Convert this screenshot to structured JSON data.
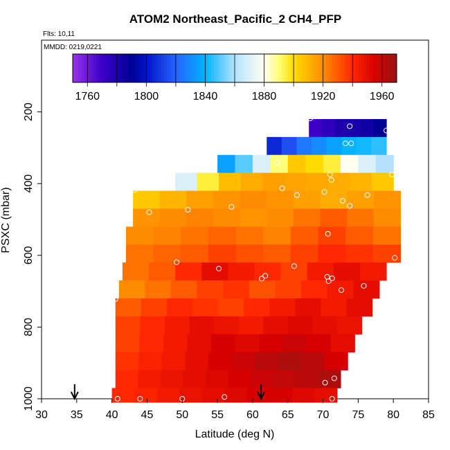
{
  "chart_data": {
    "type": "heatmap",
    "title": "ATOM2 Northeast_Pacific_2 CH4_PFP",
    "flights_note": "Flts: 10,11",
    "dates_note": "MMDD: 0219,0221",
    "xlabel": "Latitude (deg N)",
    "ylabel": "PSXC (mbar)",
    "xlim": [
      30,
      85
    ],
    "ylim": [
      1000,
      0
    ],
    "x_ticks": [
      "30",
      "35",
      "40",
      "45",
      "50",
      "55",
      "60",
      "65",
      "70",
      "75",
      "80",
      "85"
    ],
    "y_ticks": [
      "200",
      "400",
      "600",
      "800",
      "1000"
    ],
    "colorbar": {
      "ticks": [
        "1760",
        "1800",
        "1840",
        "1880",
        "1920",
        "1960"
      ],
      "range": [
        1750,
        1970
      ]
    },
    "pressure_bin_edges": [
      220,
      270,
      320,
      370,
      420,
      470,
      520,
      570,
      620,
      670,
      720,
      770,
      820,
      870,
      920,
      970,
      1010
    ],
    "rows": [
      {
        "p_top": 220,
        "p_bot": 270,
        "lat_min": 68,
        "lat_max": 79,
        "values": [
          1770,
          1775,
          1780,
          1782,
          1785,
          1790
        ]
      },
      {
        "p_top": 270,
        "p_bot": 320,
        "lat_min": 62,
        "lat_max": 79,
        "values": [
          1805,
          1815,
          1825,
          1830,
          1835,
          1840,
          1842,
          1845
        ]
      },
      {
        "p_top": 320,
        "p_bot": 370,
        "lat_min": 55,
        "lat_max": 80,
        "values": [
          1835,
          1850,
          1870,
          1890,
          1905,
          1900,
          1895,
          1880,
          1870,
          1860
        ]
      },
      {
        "p_top": 370,
        "p_bot": 420,
        "lat_min": 49,
        "lat_max": 80,
        "values": [
          1870,
          1895,
          1908,
          1912,
          1915,
          1914,
          1913,
          1912,
          1910,
          1905
        ]
      },
      {
        "p_top": 420,
        "p_bot": 470,
        "lat_min": 43,
        "lat_max": 81,
        "values": [
          1905,
          1910,
          1915,
          1918,
          1920,
          1918,
          1915,
          1912,
          1915,
          1918
        ]
      },
      {
        "p_top": 470,
        "p_bot": 520,
        "lat_min": 43,
        "lat_max": 81,
        "values": [
          1918,
          1920,
          1922,
          1920,
          1918,
          1920,
          1925,
          1930,
          1925,
          1920
        ]
      },
      {
        "p_top": 520,
        "p_bot": 570,
        "lat_min": 42,
        "lat_max": 81,
        "values": [
          1920,
          1922,
          1925,
          1928,
          1925,
          1922,
          1930,
          1935,
          1930,
          1925
        ]
      },
      {
        "p_top": 570,
        "p_bot": 620,
        "lat_min": 42,
        "lat_max": 81,
        "values": [
          1925,
          1928,
          1930,
          1935,
          1932,
          1930,
          1935,
          1940,
          1938,
          1935
        ]
      },
      {
        "p_top": 620,
        "p_bot": 670,
        "lat_min": 41.5,
        "lat_max": 79,
        "values": [
          1925,
          1930,
          1940,
          1950,
          1945,
          1940,
          1935,
          1945,
          1950,
          1945
        ]
      },
      {
        "p_top": 670,
        "p_bot": 720,
        "lat_min": 41,
        "lat_max": 78,
        "values": [
          1920,
          1925,
          1930,
          1935,
          1938,
          1932,
          1935,
          1940,
          1945,
          1950
        ]
      },
      {
        "p_top": 720,
        "p_bot": 770,
        "lat_min": 40.5,
        "lat_max": 77,
        "values": [
          1930,
          1935,
          1940,
          1938,
          1935,
          1940,
          1945,
          1950,
          1945,
          1950
        ]
      },
      {
        "p_top": 770,
        "p_bot": 820,
        "lat_min": 40.5,
        "lat_max": 75.5,
        "values": [
          1935,
          1940,
          1945,
          1950,
          1948,
          1945,
          1950,
          1952,
          1950,
          1948
        ]
      },
      {
        "p_top": 820,
        "p_bot": 870,
        "lat_min": 40.5,
        "lat_max": 74.5,
        "values": [
          1935,
          1940,
          1945,
          1950,
          1955,
          1952,
          1955,
          1958,
          1955,
          1950
        ]
      },
      {
        "p_top": 870,
        "p_bot": 920,
        "lat_min": 40.5,
        "lat_max": 73.5,
        "values": [
          1938,
          1942,
          1945,
          1950,
          1955,
          1958,
          1962,
          1965,
          1962,
          1955
        ]
      },
      {
        "p_top": 920,
        "p_bot": 970,
        "lat_min": 40.5,
        "lat_max": 72.5,
        "values": [
          1940,
          1945,
          1948,
          1950,
          1952,
          1955,
          1958,
          1960,
          1962,
          1965
        ]
      },
      {
        "p_top": 970,
        "p_bot": 1010,
        "lat_min": 40,
        "lat_max": 72,
        "values": [
          1940,
          1942,
          1945,
          1948,
          1950,
          1952,
          1955,
          1955,
          1952,
          1950
        ]
      }
    ],
    "samples": [
      {
        "lat": 68.2,
        "p": 218
      },
      {
        "lat": 73.8,
        "p": 240
      },
      {
        "lat": 79.0,
        "p": 252
      },
      {
        "lat": 73.2,
        "p": 288
      },
      {
        "lat": 74.0,
        "p": 288
      },
      {
        "lat": 63.5,
        "p": 342
      },
      {
        "lat": 71.0,
        "p": 375
      },
      {
        "lat": 79.8,
        "p": 375
      },
      {
        "lat": 71.2,
        "p": 390
      },
      {
        "lat": 43.2,
        "p": 418
      },
      {
        "lat": 64.2,
        "p": 413
      },
      {
        "lat": 70.2,
        "p": 423
      },
      {
        "lat": 66.3,
        "p": 432
      },
      {
        "lat": 76.3,
        "p": 432
      },
      {
        "lat": 72.8,
        "p": 448
      },
      {
        "lat": 57.0,
        "p": 465
      },
      {
        "lat": 73.8,
        "p": 462
      },
      {
        "lat": 50.8,
        "p": 473
      },
      {
        "lat": 45.3,
        "p": 480
      },
      {
        "lat": 70.7,
        "p": 540
      },
      {
        "lat": 80.2,
        "p": 607
      },
      {
        "lat": 49.2,
        "p": 619
      },
      {
        "lat": 55.2,
        "p": 637
      },
      {
        "lat": 65.9,
        "p": 630
      },
      {
        "lat": 61.8,
        "p": 657
      },
      {
        "lat": 61.3,
        "p": 665
      },
      {
        "lat": 70.6,
        "p": 660
      },
      {
        "lat": 71.3,
        "p": 664
      },
      {
        "lat": 70.8,
        "p": 672
      },
      {
        "lat": 75.8,
        "p": 685
      },
      {
        "lat": 72.6,
        "p": 697
      },
      {
        "lat": 40.5,
        "p": 722
      },
      {
        "lat": 71.6,
        "p": 943
      },
      {
        "lat": 70.3,
        "p": 955
      },
      {
        "lat": 56.0,
        "p": 995
      },
      {
        "lat": 40.8,
        "p": 1000
      },
      {
        "lat": 44.0,
        "p": 1000
      },
      {
        "lat": 50.0,
        "p": 1000
      },
      {
        "lat": 71.3,
        "p": 1000
      }
    ],
    "arrows": [
      {
        "lat": 34.7
      },
      {
        "lat": 61.2
      }
    ]
  }
}
